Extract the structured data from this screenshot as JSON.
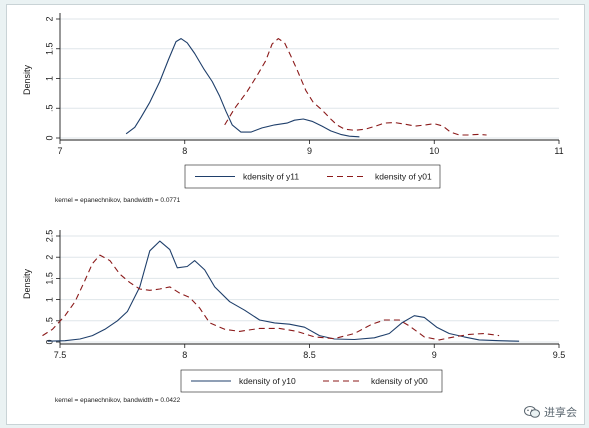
{
  "colors": {
    "series_solid": "#1f3f6b",
    "series_dashed": "#8b1a1a",
    "grid": "#dfe6ea",
    "axis": "#1a1a1a"
  },
  "watermark": {
    "text": "进享会",
    "icon": "wechat-icon"
  },
  "chart_data": [
    {
      "type": "line",
      "ylabel": "Density",
      "xlim": [
        7,
        11
      ],
      "ylim": [
        0,
        2
      ],
      "xticks": [
        "7",
        "8",
        "9",
        "10",
        "11"
      ],
      "yticks": [
        "0",
        ".5",
        "1",
        "1.5",
        "2"
      ],
      "grid": true,
      "legend_position": "bottom",
      "note": "kernel = epanechnikov, bandwidth = 0.0771",
      "series": [
        {
          "name": "kdensity of y11",
          "style": "solid",
          "points": [
            [
              7.53,
              0.07
            ],
            [
              7.6,
              0.18
            ],
            [
              7.65,
              0.35
            ],
            [
              7.72,
              0.6
            ],
            [
              7.8,
              0.95
            ],
            [
              7.87,
              1.32
            ],
            [
              7.93,
              1.62
            ],
            [
              7.97,
              1.67
            ],
            [
              8.02,
              1.6
            ],
            [
              8.08,
              1.42
            ],
            [
              8.15,
              1.17
            ],
            [
              8.22,
              0.95
            ],
            [
              8.28,
              0.7
            ],
            [
              8.33,
              0.45
            ],
            [
              8.38,
              0.22
            ],
            [
              8.45,
              0.1
            ],
            [
              8.53,
              0.1
            ],
            [
              8.62,
              0.17
            ],
            [
              8.72,
              0.22
            ],
            [
              8.82,
              0.25
            ],
            [
              8.88,
              0.3
            ],
            [
              8.95,
              0.32
            ],
            [
              9.02,
              0.28
            ],
            [
              9.1,
              0.2
            ],
            [
              9.17,
              0.12
            ],
            [
              9.25,
              0.06
            ],
            [
              9.32,
              0.03
            ],
            [
              9.4,
              0.02
            ]
          ]
        },
        {
          "name": "kdensity of y01",
          "style": "dashed",
          "points": [
            [
              8.32,
              0.22
            ],
            [
              8.4,
              0.5
            ],
            [
              8.5,
              0.78
            ],
            [
              8.58,
              1.05
            ],
            [
              8.65,
              1.3
            ],
            [
              8.7,
              1.58
            ],
            [
              8.75,
              1.67
            ],
            [
              8.8,
              1.6
            ],
            [
              8.85,
              1.38
            ],
            [
              8.9,
              1.15
            ],
            [
              8.97,
              0.8
            ],
            [
              9.03,
              0.6
            ],
            [
              9.1,
              0.47
            ],
            [
              9.17,
              0.32
            ],
            [
              9.22,
              0.22
            ],
            [
              9.28,
              0.15
            ],
            [
              9.36,
              0.13
            ],
            [
              9.45,
              0.15
            ],
            [
              9.53,
              0.2
            ],
            [
              9.6,
              0.25
            ],
            [
              9.68,
              0.26
            ],
            [
              9.77,
              0.23
            ],
            [
              9.85,
              0.2
            ],
            [
              9.93,
              0.22
            ],
            [
              10.0,
              0.24
            ],
            [
              10.07,
              0.2
            ],
            [
              10.13,
              0.1
            ],
            [
              10.2,
              0.05
            ],
            [
              10.27,
              0.05
            ],
            [
              10.35,
              0.06
            ],
            [
              10.42,
              0.05
            ]
          ]
        }
      ]
    },
    {
      "type": "line",
      "ylabel": "Density",
      "xlim": [
        7.5,
        9.5
      ],
      "ylim": [
        0,
        2.5
      ],
      "xticks": [
        "7.5",
        "8",
        "8.5",
        "9",
        "9.5"
      ],
      "yticks": [
        "0",
        ".5",
        "1",
        "1.5",
        "2",
        "2.5"
      ],
      "grid": true,
      "legend_position": "bottom",
      "note": "kernel = epanechnikov, bandwidth = 0.0422",
      "series": [
        {
          "name": "kdensity of y10",
          "style": "solid",
          "points": [
            [
              7.45,
              0.02
            ],
            [
              7.52,
              0.03
            ],
            [
              7.58,
              0.07
            ],
            [
              7.63,
              0.15
            ],
            [
              7.68,
              0.3
            ],
            [
              7.73,
              0.5
            ],
            [
              7.77,
              0.72
            ],
            [
              7.82,
              1.3
            ],
            [
              7.86,
              2.15
            ],
            [
              7.9,
              2.38
            ],
            [
              7.94,
              2.18
            ],
            [
              7.97,
              1.75
            ],
            [
              8.01,
              1.78
            ],
            [
              8.04,
              1.92
            ],
            [
              8.08,
              1.7
            ],
            [
              8.12,
              1.3
            ],
            [
              8.18,
              0.95
            ],
            [
              8.24,
              0.75
            ],
            [
              8.3,
              0.52
            ],
            [
              8.36,
              0.45
            ],
            [
              8.42,
              0.42
            ],
            [
              8.48,
              0.35
            ],
            [
              8.54,
              0.15
            ],
            [
              8.6,
              0.07
            ],
            [
              8.68,
              0.06
            ],
            [
              8.76,
              0.1
            ],
            [
              8.82,
              0.2
            ],
            [
              8.87,
              0.45
            ],
            [
              8.92,
              0.62
            ],
            [
              8.96,
              0.58
            ],
            [
              9.01,
              0.35
            ],
            [
              9.06,
              0.2
            ],
            [
              9.12,
              0.12
            ],
            [
              9.18,
              0.05
            ],
            [
              9.26,
              0.03
            ],
            [
              9.34,
              0.02
            ]
          ]
        },
        {
          "name": "kdensity of y00",
          "style": "dashed",
          "points": [
            [
              7.43,
              0.15
            ],
            [
              7.47,
              0.3
            ],
            [
              7.52,
              0.62
            ],
            [
              7.56,
              0.95
            ],
            [
              7.6,
              1.45
            ],
            [
              7.63,
              1.85
            ],
            [
              7.66,
              2.05
            ],
            [
              7.7,
              1.92
            ],
            [
              7.74,
              1.6
            ],
            [
              7.78,
              1.4
            ],
            [
              7.82,
              1.25
            ],
            [
              7.86,
              1.22
            ],
            [
              7.9,
              1.25
            ],
            [
              7.94,
              1.3
            ],
            [
              7.98,
              1.15
            ],
            [
              8.02,
              1.05
            ],
            [
              8.06,
              0.8
            ],
            [
              8.1,
              0.45
            ],
            [
              8.16,
              0.3
            ],
            [
              8.22,
              0.25
            ],
            [
              8.3,
              0.32
            ],
            [
              8.38,
              0.32
            ],
            [
              8.45,
              0.25
            ],
            [
              8.52,
              0.12
            ],
            [
              8.6,
              0.08
            ],
            [
              8.68,
              0.2
            ],
            [
              8.75,
              0.42
            ],
            [
              8.8,
              0.52
            ],
            [
              8.86,
              0.52
            ],
            [
              8.9,
              0.38
            ],
            [
              8.96,
              0.12
            ],
            [
              9.02,
              0.05
            ],
            [
              9.08,
              0.12
            ],
            [
              9.14,
              0.18
            ],
            [
              9.2,
              0.2
            ],
            [
              9.26,
              0.15
            ]
          ]
        }
      ]
    }
  ]
}
